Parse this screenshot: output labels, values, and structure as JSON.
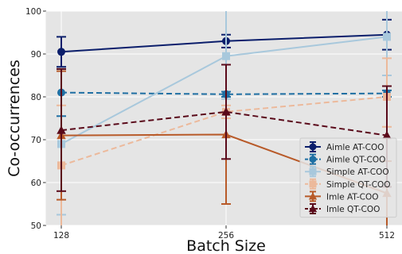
{
  "chart_data": {
    "type": "line",
    "title": "",
    "xlabel": "Batch Size",
    "ylabel": "Co-occurrences",
    "x": [
      128,
      256,
      512
    ],
    "x_tick_labels": [
      "128",
      "256",
      "512"
    ],
    "x_scale": "log2",
    "ylim": [
      50,
      100
    ],
    "y_ticks": [
      50,
      60,
      70,
      80,
      90,
      100
    ],
    "grid": true,
    "legend_position": "bottom-right",
    "series": [
      {
        "name": "Aimle AT-COO",
        "values": [
          90.5,
          93.0,
          94.5
        ],
        "err_low": [
          87.0,
          91.5,
          91.0
        ],
        "err_high": [
          94.0,
          94.5,
          98.0
        ],
        "color": "#0b1e6b",
        "linestyle": "solid",
        "marker": "circle"
      },
      {
        "name": "Aimle QT-COO",
        "values": [
          81.0,
          80.6,
          80.8
        ],
        "err_low": [
          75.5,
          80.0,
          80.0
        ],
        "err_high": [
          86.5,
          81.2,
          81.5
        ],
        "color": "#1f6fa3",
        "linestyle": "dashed",
        "marker": "circle"
      },
      {
        "name": "Simple AT-COO",
        "values": [
          69.0,
          89.5,
          94.0
        ],
        "err_low": [
          52.5,
          79.5,
          85.0
        ],
        "err_high": [
          86.0,
          100.0,
          100.0
        ],
        "color": "#a8c8dc",
        "linestyle": "solid",
        "marker": "square"
      },
      {
        "name": "Simple QT-COO",
        "values": [
          64.0,
          76.5,
          80.0
        ],
        "err_low": [
          50.0,
          75.0,
          73.0
        ],
        "err_high": [
          78.0,
          78.0,
          89.0
        ],
        "color": "#ecb99b",
        "linestyle": "dashed",
        "marker": "square"
      },
      {
        "name": "Imle AT-COO",
        "values": [
          71.0,
          71.2,
          57.5
        ],
        "err_low": [
          56.0,
          55.0,
          50.0
        ],
        "err_high": [
          86.0,
          87.5,
          65.0
        ],
        "color": "#b85a29",
        "linestyle": "solid",
        "marker": "triangle"
      },
      {
        "name": "Imle QT-COO",
        "values": [
          72.2,
          76.5,
          71.0
        ],
        "err_low": [
          58.0,
          65.5,
          59.0
        ],
        "err_high": [
          86.5,
          87.5,
          82.5
        ],
        "color": "#5a0a1a",
        "linestyle": "dashed",
        "marker": "triangle"
      }
    ]
  }
}
